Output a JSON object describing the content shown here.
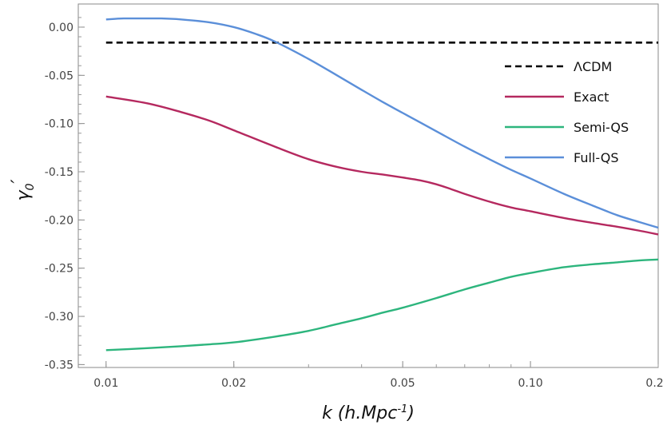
{
  "chart_data": {
    "type": "line",
    "xlabel": "k (h.Mpc",
    "xlabel_sup": "-1",
    "xlabel_close": ")",
    "ylabel": "γ",
    "ylabel_sub": "0",
    "ylabel_prime": "′",
    "x_scale": "log",
    "xlim": [
      0.0086,
      0.2
    ],
    "ylim": [
      -0.353,
      0.024
    ],
    "x_ticks": [
      {
        "value": 0.01,
        "label": "0.01"
      },
      {
        "value": 0.02,
        "label": "0.02"
      },
      {
        "value": 0.05,
        "label": "0.05"
      },
      {
        "value": 0.1,
        "label": "0.10"
      },
      {
        "value": 0.2,
        "label": "0.20"
      }
    ],
    "y_ticks": [
      {
        "value": 0.0,
        "label": "0.00"
      },
      {
        "value": -0.05,
        "label": "-0.05"
      },
      {
        "value": -0.1,
        "label": "-0.10"
      },
      {
        "value": -0.15,
        "label": "-0.15"
      },
      {
        "value": -0.2,
        "label": "-0.20"
      },
      {
        "value": -0.25,
        "label": "-0.25"
      },
      {
        "value": -0.3,
        "label": "-0.30"
      },
      {
        "value": -0.35,
        "label": "-0.35"
      }
    ],
    "grid": false,
    "legend_position": "top-right",
    "series": [
      {
        "name": "ΛCDM",
        "color": "#000000",
        "dash": "dashed",
        "x": [
          0.01,
          0.2
        ],
        "y": [
          -0.016,
          -0.016
        ]
      },
      {
        "name": "Exact",
        "color": "#b5295f",
        "dash": "solid",
        "x": [
          0.01,
          0.0125,
          0.015,
          0.0175,
          0.02,
          0.025,
          0.03,
          0.035,
          0.04,
          0.045,
          0.05,
          0.055,
          0.06,
          0.065,
          0.07,
          0.08,
          0.09,
          0.1,
          0.12,
          0.14,
          0.16,
          0.18,
          0.2
        ],
        "y": [
          -0.072,
          -0.079,
          -0.088,
          -0.097,
          -0.107,
          -0.124,
          -0.137,
          -0.145,
          -0.15,
          -0.153,
          -0.156,
          -0.159,
          -0.163,
          -0.168,
          -0.173,
          -0.181,
          -0.187,
          -0.191,
          -0.198,
          -0.203,
          -0.207,
          -0.211,
          -0.215
        ]
      },
      {
        "name": "Semi-QS",
        "color": "#2db57d",
        "dash": "solid",
        "x": [
          0.01,
          0.0125,
          0.015,
          0.0175,
          0.02,
          0.025,
          0.03,
          0.035,
          0.04,
          0.045,
          0.05,
          0.06,
          0.07,
          0.08,
          0.09,
          0.1,
          0.12,
          0.14,
          0.16,
          0.18,
          0.2
        ],
        "y": [
          -0.335,
          -0.333,
          -0.331,
          -0.329,
          -0.327,
          -0.321,
          -0.315,
          -0.308,
          -0.302,
          -0.296,
          -0.291,
          -0.281,
          -0.272,
          -0.265,
          -0.259,
          -0.255,
          -0.249,
          -0.246,
          -0.244,
          -0.242,
          -0.241
        ]
      },
      {
        "name": "Full-QS",
        "color": "#5b8fd9",
        "dash": "solid",
        "x": [
          0.01,
          0.011,
          0.012,
          0.0135,
          0.015,
          0.0175,
          0.02,
          0.0225,
          0.025,
          0.03,
          0.035,
          0.04,
          0.045,
          0.05,
          0.06,
          0.07,
          0.08,
          0.09,
          0.1,
          0.12,
          0.14,
          0.16,
          0.18,
          0.2
        ],
        "y": [
          0.008,
          0.009,
          0.009,
          0.009,
          0.008,
          0.005,
          0.0,
          -0.007,
          -0.015,
          -0.033,
          -0.05,
          -0.065,
          -0.078,
          -0.089,
          -0.108,
          -0.124,
          -0.137,
          -0.148,
          -0.157,
          -0.173,
          -0.185,
          -0.195,
          -0.202,
          -0.208
        ]
      }
    ]
  }
}
